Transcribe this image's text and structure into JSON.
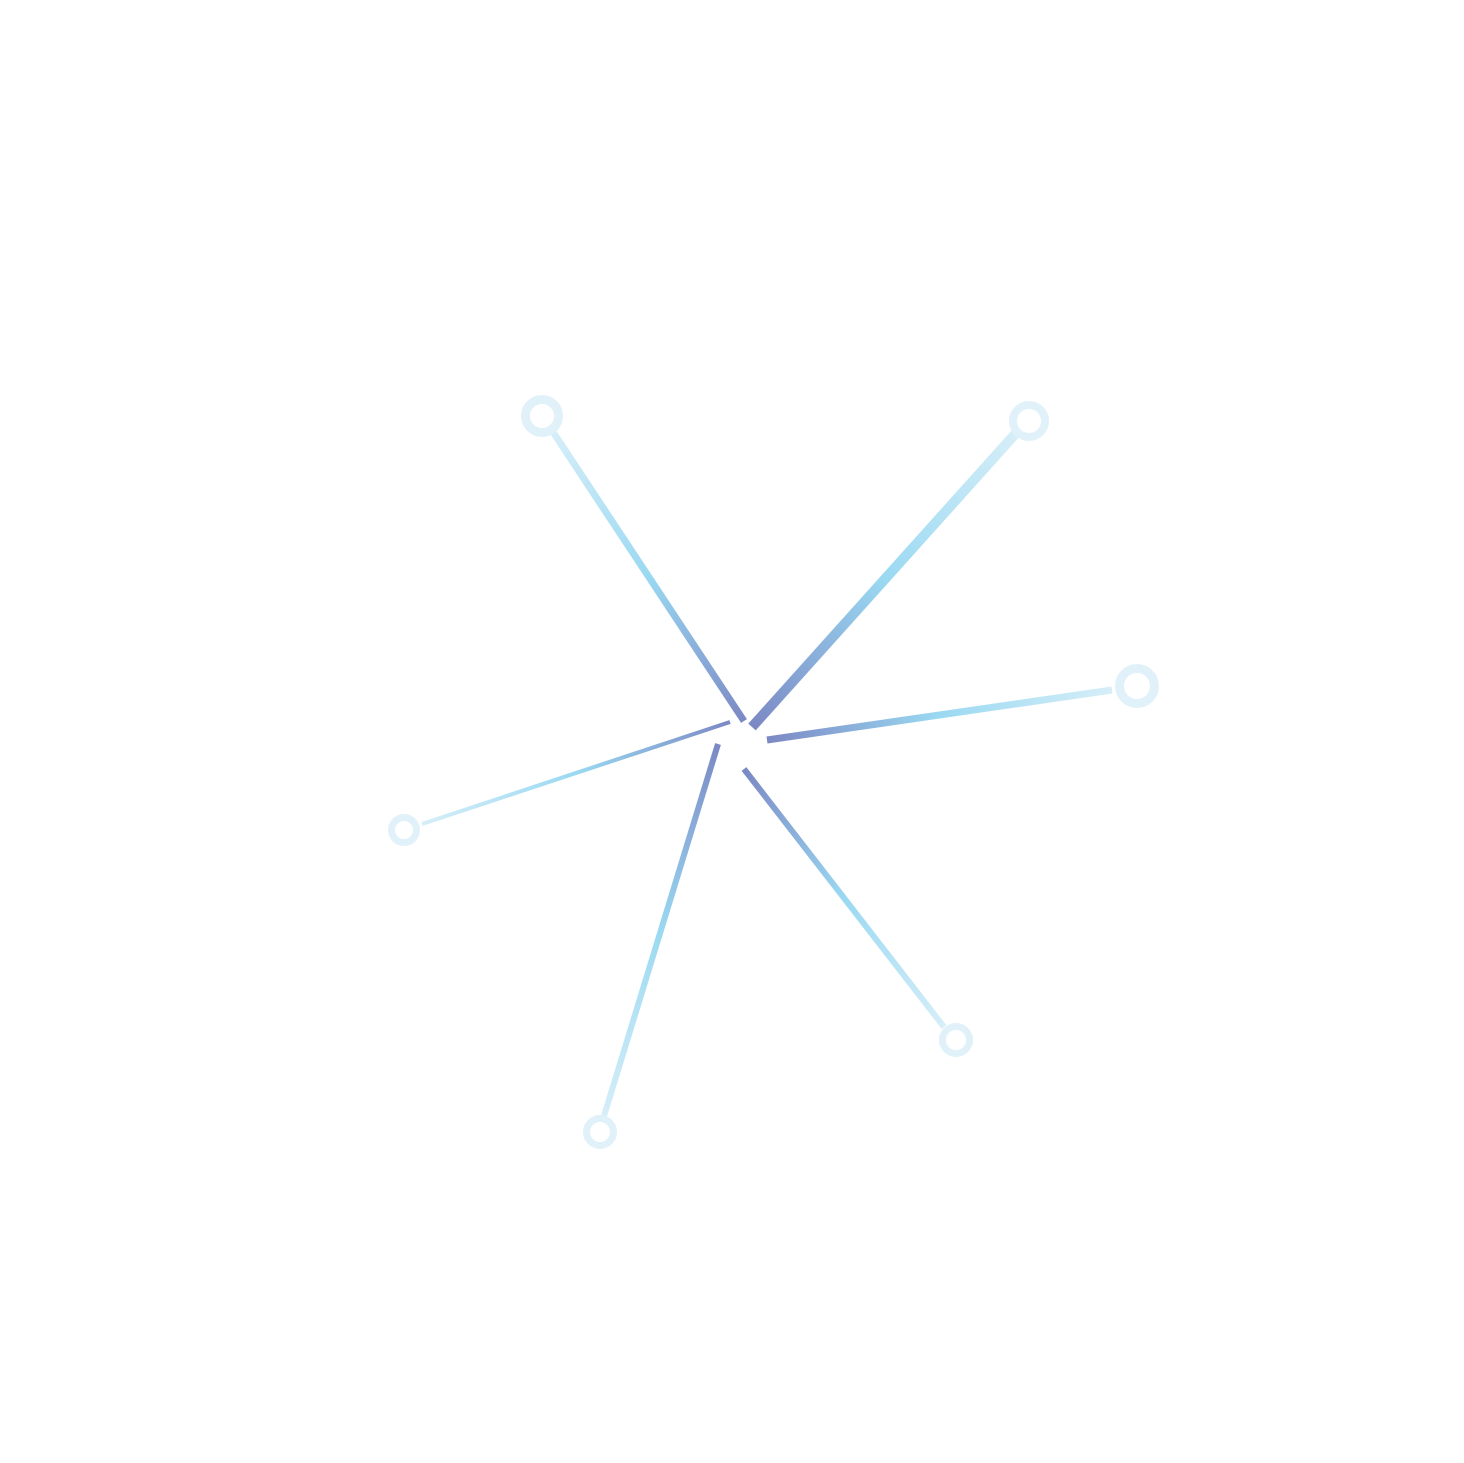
{
  "diagram": {
    "type": "radial-network",
    "hub": "center",
    "spoke_count": 6,
    "colors": {
      "background": "#ffffff",
      "hub_end": "#7b88c4",
      "mid": "#9ad9f2",
      "tip_end": "#d6eef8",
      "node_ring": "#e1f1fa",
      "node_fill": "#ffffff"
    },
    "spokes": [
      {
        "id": "upper-left"
      },
      {
        "id": "upper-right"
      },
      {
        "id": "right"
      },
      {
        "id": "lower-right"
      },
      {
        "id": "lower-left"
      },
      {
        "id": "left"
      }
    ]
  }
}
